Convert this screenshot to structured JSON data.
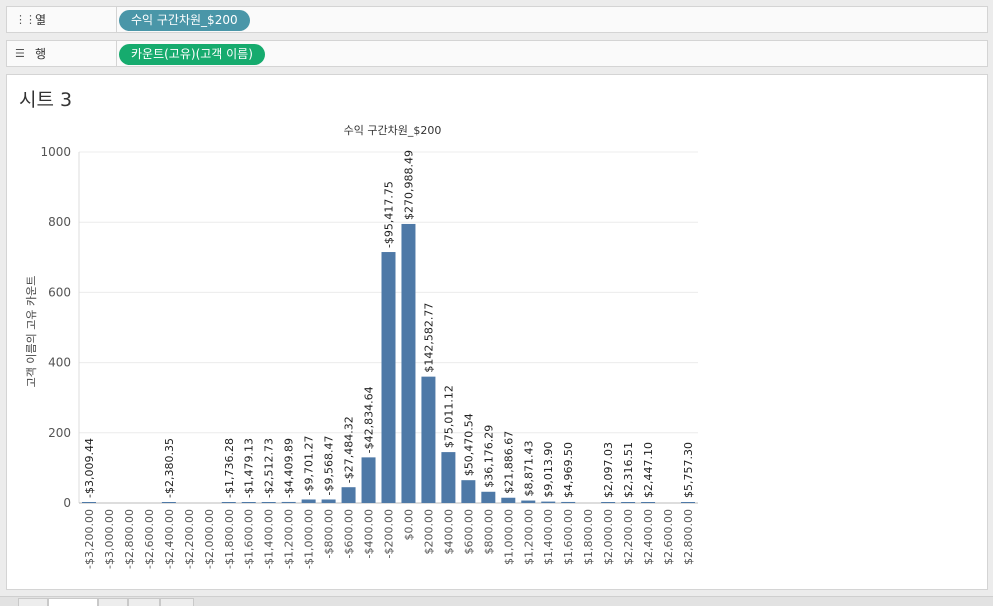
{
  "shelves": {
    "columns": {
      "label": "열",
      "pill": "수익 구간차원_$200",
      "pill_color": "#4a96a8"
    },
    "rows": {
      "label": "행",
      "pill": "카운트(고유)(고객 이름)",
      "pill_color": "#16ab6e"
    }
  },
  "sheet": {
    "title": "시트 3"
  },
  "chart_data": {
    "type": "bar",
    "title": "수익 구간차원_$200",
    "ylabel": "고객 이름의 고유 카운트",
    "xlabel": "",
    "ylim": [
      0,
      1000
    ],
    "yticks": [
      0,
      200,
      400,
      600,
      800,
      1000
    ],
    "bar_color": "#4e79a7",
    "grid": true,
    "categories": [
      "-$3,200.00",
      "-$3,000.00",
      "-$2,800.00",
      "-$2,600.00",
      "-$2,400.00",
      "-$2,200.00",
      "-$2,000.00",
      "-$1,800.00",
      "-$1,600.00",
      "-$1,400.00",
      "-$1,200.00",
      "-$1,000.00",
      "-$800.00",
      "-$600.00",
      "-$400.00",
      "-$200.00",
      "$0.00",
      "$200.00",
      "$400.00",
      "$600.00",
      "$800.00",
      "$1,000.00",
      "$1,200.00",
      "$1,400.00",
      "$1,600.00",
      "$1,800.00",
      "$2,000.00",
      "$2,200.00",
      "$2,400.00",
      "$2,600.00",
      "$2,800.00"
    ],
    "values": [
      1,
      0,
      0,
      0,
      1,
      0,
      0,
      1,
      1,
      2,
      3,
      10,
      10,
      45,
      130,
      715,
      795,
      360,
      145,
      65,
      32,
      15,
      7,
      4,
      3,
      0,
      1,
      1,
      1,
      0,
      1
    ],
    "data_labels": [
      "-$3,009.44",
      "",
      "",
      "",
      "-$2,380.35",
      "",
      "",
      "-$1,736.28",
      "-$1,479.13",
      "-$2,512.73",
      "-$4,409.89",
      "-$9,701.27",
      "-$9,568.47",
      "-$27,484.32",
      "-$42,834.64",
      "-$95,417.75",
      "$270,988.49",
      "$142,582.77",
      "$75,011.12",
      "$50,470.54",
      "$36,176.29",
      "$21,886.67",
      "$8,871.43",
      "$9,013.90",
      "$4,969.50",
      "",
      "$2,097.03",
      "$2,316.51",
      "$2,447.10",
      "",
      "$5,757.30"
    ]
  }
}
